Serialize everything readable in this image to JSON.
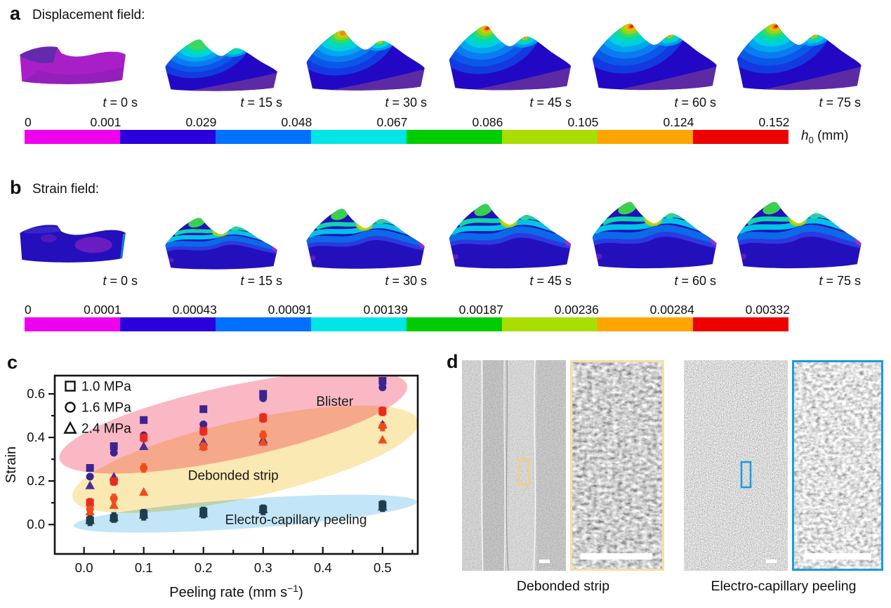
{
  "figure": {
    "panels": {
      "a": {
        "label": "a",
        "title": "Displacement field:",
        "time_symbol": "t",
        "time_eq": " = ",
        "times": [
          "0 s",
          "15 s",
          "30 s",
          "45 s",
          "60 s",
          "75 s"
        ],
        "colorbar": {
          "ticks": [
            "0",
            "0.001",
            "0.029",
            "0.048",
            "0.067",
            "0.086",
            "0.105",
            "0.124",
            "0.152"
          ],
          "colors": [
            "#ee00ee",
            "#2a00dd",
            "#0070ff",
            "#00e5e5",
            "#00cc00",
            "#aadd00",
            "#ffa500",
            "#ee0000"
          ],
          "unit": {
            "symbol": "h",
            "sub": "0",
            "rest": " (mm)"
          }
        }
      },
      "b": {
        "label": "b",
        "title": "Strain field:",
        "time_symbol": "t",
        "time_eq": " = ",
        "times": [
          "0 s",
          "15 s",
          "30 s",
          "45 s",
          "60 s",
          "75 s"
        ],
        "colorbar": {
          "ticks": [
            "0",
            "0.0001",
            "0.00043",
            "0.00091",
            "0.00139",
            "0.00187",
            "0.00236",
            "0.00284",
            "0.00332"
          ],
          "colors": [
            "#ee00ee",
            "#2a00dd",
            "#0070ff",
            "#00e5e5",
            "#00cc00",
            "#aadd00",
            "#ffa500",
            "#ee0000"
          ]
        }
      },
      "c": {
        "label": "c"
      },
      "d": {
        "label": "d",
        "captions": [
          "Debonded strip",
          "Electro-capillary peeling"
        ],
        "annotation_colors": {
          "debonded": "#f0d080",
          "electro": "#199cdc"
        }
      }
    }
  },
  "chart_data": {
    "type": "scatter",
    "xlabel": {
      "base": "Peeling rate (mm s",
      "sup": "−1",
      "close": ")"
    },
    "ylabel": "Strain",
    "xlim": [
      -0.049,
      0.559
    ],
    "ylim": [
      -0.135,
      0.684
    ],
    "x_major_ticks": [
      0.0,
      0.1,
      0.2,
      0.3,
      0.4,
      0.5
    ],
    "x_minor_ticks": [
      0.05,
      0.15,
      0.25,
      0.35,
      0.45,
      0.55
    ],
    "y_major_ticks": [
      0.0,
      0.2,
      0.4,
      0.6
    ],
    "y_minor_ticks": [
      0.1,
      0.3,
      0.5
    ],
    "x_tick_labels": [
      "0.0",
      "0.1",
      "0.2",
      "0.3",
      "0.4",
      "0.5"
    ],
    "y_tick_labels": [
      "0.0",
      "0.2",
      "0.4",
      "0.6"
    ],
    "legend": [
      {
        "marker": "square",
        "label": "1.0 MPa"
      },
      {
        "marker": "circle",
        "label": "1.6 MPa"
      },
      {
        "marker": "triangle",
        "label": "2.4 MPa"
      }
    ],
    "x": [
      0.01,
      0.05,
      0.1,
      0.2,
      0.3,
      0.5
    ],
    "series": [
      {
        "group": "Blister",
        "pressure": "1.0 MPa",
        "marker": "square",
        "color": "#3b2491",
        "error_bars": false,
        "values": [
          0.26,
          0.36,
          0.48,
          0.53,
          0.6,
          0.66
        ]
      },
      {
        "group": "Blister",
        "pressure": "1.6 MPa",
        "marker": "circle",
        "color": "#3b2491",
        "error_bars": false,
        "values": [
          0.22,
          0.33,
          0.41,
          0.46,
          0.58,
          0.63
        ]
      },
      {
        "group": "Blister",
        "pressure": "2.4 MPa",
        "marker": "triangle",
        "color": "#4a2f96",
        "error_bars": false,
        "values": [
          0.18,
          0.22,
          0.36,
          0.38,
          0.39,
          0.46
        ]
      },
      {
        "group": "Debonded strip",
        "pressure": "1.0 MPa",
        "marker": "square",
        "color": "#e92a1f",
        "error_bars": true,
        "values": [
          0.1,
          0.2,
          0.4,
          0.43,
          0.49,
          0.52
        ]
      },
      {
        "group": "Debonded strip",
        "pressure": "1.6 MPa",
        "marker": "circle",
        "color": "#f04b1a",
        "error_bars": true,
        "values": [
          0.07,
          0.12,
          0.26,
          0.36,
          0.41,
          0.45
        ]
      },
      {
        "group": "Debonded strip",
        "pressure": "2.4 MPa",
        "marker": "triangle",
        "color": "#f04b1a",
        "error_bars": false,
        "values": [
          0.06,
          0.09,
          0.15,
          0.36,
          0.38,
          0.39
        ]
      },
      {
        "group": "Electro-capillary peeling",
        "pressure": "1.0 MPa",
        "marker": "square",
        "color": "#1f3d4d",
        "error_bars": true,
        "values": [
          0.02,
          0.03,
          0.05,
          0.06,
          0.07,
          0.09
        ]
      },
      {
        "group": "Electro-capillary peeling",
        "pressure": "1.6 MPa",
        "marker": "circle",
        "color": "#1f3d4d",
        "error_bars": true,
        "values": [
          0.015,
          0.03,
          0.04,
          0.05,
          0.065,
          0.08
        ]
      },
      {
        "group": "Electro-capillary peeling",
        "pressure": "2.4 MPa",
        "marker": "triangle",
        "color": "#1f3d4d",
        "error_bars": true,
        "values": [
          0.02,
          0.035,
          0.045,
          0.052,
          0.07,
          0.082
        ]
      }
    ],
    "regions": [
      {
        "label": "Blister",
        "fill": "#f9b8c3",
        "label_pos": [
          0.42,
          0.565
        ],
        "ellipse": {
          "center": [
            0.25,
            0.47
          ],
          "a": 253,
          "b": 52,
          "rot": -12
        }
      },
      {
        "label": "Debonded strip",
        "fill": "#fbe9b4",
        "label_pos": [
          0.25,
          0.225
        ],
        "ellipse": {
          "center": [
            0.27,
            0.3
          ],
          "a": 252,
          "b": 55,
          "rot": -12.5
        }
      },
      {
        "label": "Electro-capillary peeling",
        "fill": "#c2e6f7",
        "label_pos": [
          0.355,
          0.022
        ],
        "ellipse": {
          "center": [
            0.27,
            0.05
          ],
          "a": 245,
          "b": 21,
          "rot": -4
        }
      }
    ]
  }
}
